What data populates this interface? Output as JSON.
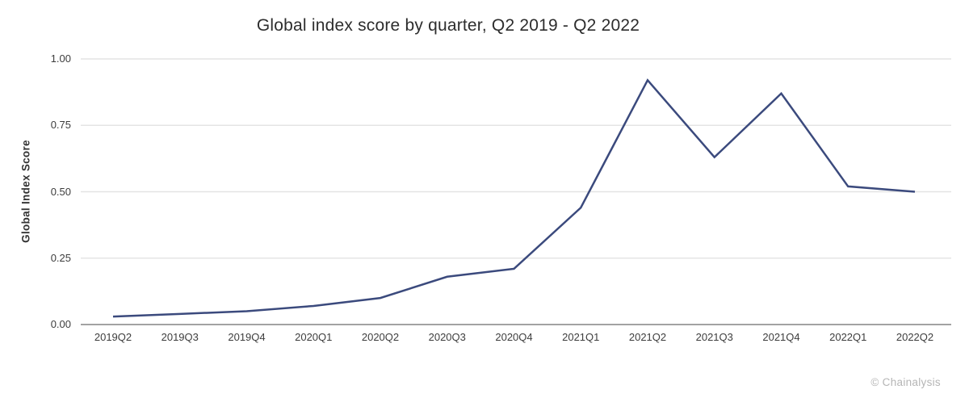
{
  "attribution": "© Chainalysis",
  "chart_data": {
    "type": "line",
    "title": "Global index score by quarter, Q2 2019 - Q2 2022",
    "xlabel": "",
    "ylabel": "Global Index Score",
    "categories": [
      "2019Q2",
      "2019Q3",
      "2019Q4",
      "2020Q1",
      "2020Q2",
      "2020Q3",
      "2020Q4",
      "2021Q1",
      "2021Q2",
      "2021Q3",
      "2021Q4",
      "2022Q1",
      "2022Q2"
    ],
    "series": [
      {
        "name": "Global index score",
        "values": [
          0.03,
          0.04,
          0.05,
          0.07,
          0.1,
          0.18,
          0.21,
          0.44,
          0.92,
          0.63,
          0.87,
          0.52,
          0.5
        ]
      }
    ],
    "ylim": [
      0,
      1
    ],
    "yticks": [
      0,
      0.25,
      0.5,
      0.75,
      1
    ],
    "ytick_labels": [
      "0.00",
      "0.25",
      "0.50",
      "0.75",
      "1.00"
    ],
    "grid": "horizontal",
    "legend": "none",
    "colors": {
      "line": "#3b4a7d",
      "gridline": "#e4e4e4",
      "axis_line": "#a3a3a3",
      "tick_text": "#3d3d3d",
      "title_text": "#2d2d2d",
      "attribution_text": "#b5b5b5"
    }
  }
}
